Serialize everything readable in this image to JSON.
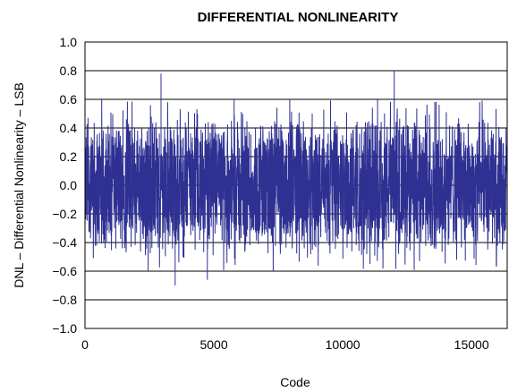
{
  "chart_data": {
    "type": "line",
    "title": "DIFFERENTIAL NONLINEARITY",
    "xlabel": "Code",
    "ylabel": "DNL – Differential Nonlinearity – LSB",
    "xlim": [
      0,
      16383
    ],
    "ylim": [
      -1.0,
      1.0
    ],
    "x_ticks": [
      0,
      5000,
      10000,
      15000
    ],
    "x_tick_labels": [
      "0",
      "5000",
      "10000",
      "15000"
    ],
    "y_ticks": [
      1.0,
      0.8,
      0.6,
      0.4,
      0.2,
      0.0,
      -0.2,
      -0.4,
      -0.6,
      -0.8,
      -1.0
    ],
    "y_tick_labels": [
      "1.0",
      "0.8",
      "0.6",
      "0.4",
      "0.2",
      "0.0",
      "−0.2",
      "−0.4",
      "−0.6",
      "−0.8",
      "−1.0"
    ],
    "grid": "horizontal",
    "legend": "none",
    "series": [
      {
        "color": "#2E3192",
        "typical_range": [
          -0.45,
          0.45
        ],
        "max": 0.8,
        "min": -0.7,
        "peaks": [
          {
            "x": 2950,
            "y": 0.78
          },
          {
            "x": 12000,
            "y": 0.8
          },
          {
            "x": 3500,
            "y": -0.7
          },
          {
            "x": 4750,
            "y": -0.66
          }
        ]
      }
    ]
  }
}
